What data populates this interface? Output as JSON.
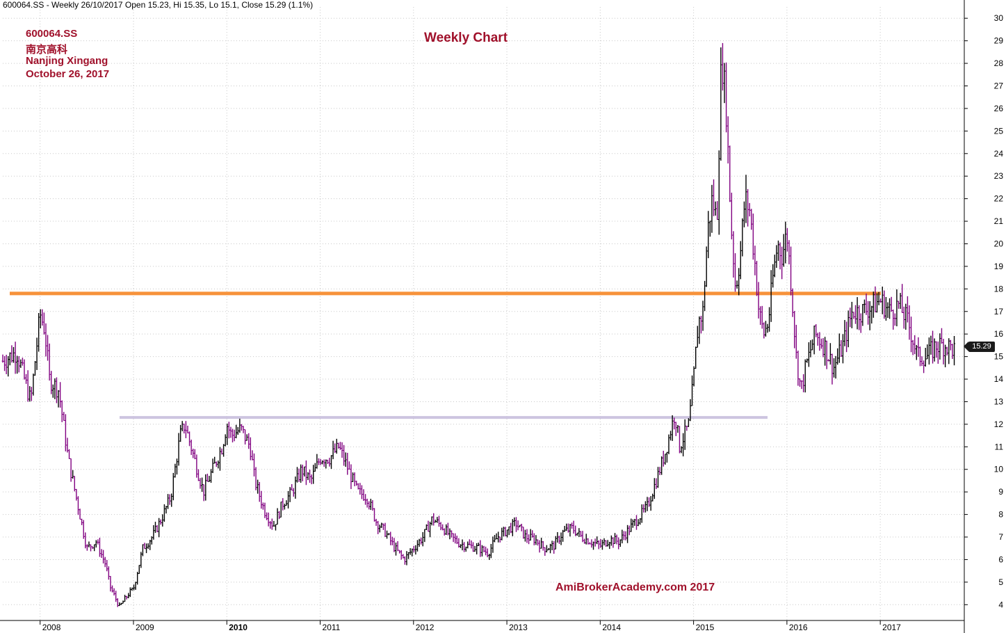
{
  "header": {
    "text": "600064.SS - Weekly 26/10/2017 Open 15.23, Hi 15.35, Lo 15.1, Close 15.29 (1.1%)"
  },
  "info": {
    "ticker": "600064.SS",
    "chinese_name": "南京高科",
    "company": "Nanjing Xingang",
    "date": "October 26, 2017"
  },
  "title": "Weekly Chart",
  "watermark": "AmiBrokerAcademy.com 2017",
  "colors": {
    "price_up": "#000000",
    "price_down": "#800080",
    "resistance": "#f7923a",
    "support": "#cdc4e0",
    "text_accent": "#a0112b",
    "grid": "#c8c8c8"
  },
  "chart_data": {
    "type": "line",
    "series": [
      {
        "name": "",
        "x": [
          2007.6,
          2007.75,
          2007.9,
          2008.0,
          2008.05,
          2008.1,
          2008.2,
          2008.3,
          2008.4,
          2008.5,
          2008.6,
          2008.7,
          2008.75,
          2008.85,
          2008.95,
          2009.0,
          2009.1,
          2009.2,
          2009.3,
          2009.4,
          2009.5,
          2009.55,
          2009.65,
          2009.75,
          2009.85,
          2009.95,
          2010.0,
          2010.05,
          2010.15,
          2010.25,
          2010.3,
          2010.4,
          2010.5,
          2010.6,
          2010.7,
          2010.8,
          2010.9,
          2011.0,
          2011.1,
          2011.2,
          2011.3,
          2011.4,
          2011.5,
          2011.6,
          2011.7,
          2011.8,
          2011.9,
          2012.0,
          2012.1,
          2012.2,
          2012.3,
          2012.4,
          2012.5,
          2012.6,
          2012.7,
          2012.8,
          2012.9,
          2013.0,
          2013.1,
          2013.2,
          2013.3,
          2013.4,
          2013.5,
          2013.6,
          2013.7,
          2013.8,
          2013.9,
          2014.0,
          2014.1,
          2014.2,
          2014.3,
          2014.4,
          2014.5,
          2014.6,
          2014.7,
          2014.8,
          2014.85,
          2014.9,
          2014.95,
          2015.0,
          2015.05,
          2015.1,
          2015.15,
          2015.2,
          2015.25,
          2015.3,
          2015.35,
          2015.4,
          2015.45,
          2015.5,
          2015.55,
          2015.6,
          2015.65,
          2015.7,
          2015.75,
          2015.8,
          2015.85,
          2015.9,
          2015.95,
          2016.0,
          2016.05,
          2016.1,
          2016.15,
          2016.2,
          2016.3,
          2016.4,
          2016.5,
          2016.6,
          2016.7,
          2016.8,
          2016.9,
          2017.0,
          2017.1,
          2017.2,
          2017.3,
          2017.4,
          2017.5,
          2017.6,
          2017.7,
          2017.8
        ],
        "values": [
          14.8,
          15.2,
          13.0,
          16.9,
          16.2,
          14.0,
          13.5,
          10.5,
          8.5,
          6.5,
          6.8,
          5.8,
          4.8,
          3.9,
          4.5,
          4.7,
          6.5,
          7.0,
          7.8,
          8.8,
          11.5,
          12.0,
          10.5,
          9.0,
          10.0,
          11.0,
          12.0,
          11.5,
          11.8,
          11.0,
          9.5,
          8.2,
          7.5,
          8.5,
          9.0,
          10.0,
          9.5,
          10.5,
          10.5,
          11.0,
          10.0,
          9.0,
          8.8,
          7.7,
          7.2,
          6.5,
          6.0,
          6.5,
          7.0,
          7.8,
          7.5,
          7.0,
          6.7,
          6.6,
          6.5,
          6.3,
          7.0,
          7.3,
          7.6,
          7.0,
          6.9,
          6.5,
          6.6,
          7.2,
          7.4,
          7.0,
          6.8,
          6.6,
          6.9,
          6.8,
          7.3,
          7.8,
          8.3,
          9.5,
          10.8,
          12.5,
          11.0,
          11.5,
          12.0,
          14.0,
          16.5,
          17.0,
          20.5,
          22.0,
          21.0,
          28.5,
          26.0,
          21.0,
          18.0,
          19.5,
          22.0,
          21.5,
          19.5,
          17.0,
          16.0,
          16.5,
          18.5,
          20.0,
          19.5,
          20.5,
          18.0,
          15.0,
          13.5,
          14.5,
          16.0,
          15.5,
          14.5,
          15.5,
          17.0,
          17.0,
          17.2,
          17.5,
          17.0,
          17.3,
          16.5,
          15.0,
          15.0,
          15.5,
          15.5,
          15.29
        ]
      }
    ],
    "xlabel": "",
    "ylabel": "",
    "x_ticks": [
      "2008",
      "2009",
      "2010",
      "2011",
      "2012",
      "2013",
      "2014",
      "2015",
      "2016",
      "2017"
    ],
    "y_ticks": [
      4,
      5,
      6,
      7,
      8,
      9,
      10,
      11,
      12,
      13,
      14,
      15,
      16,
      17,
      18,
      19,
      20,
      21,
      22,
      23,
      24,
      25,
      26,
      27,
      28,
      29,
      30
    ],
    "ylim": [
      3.3,
      30.5
    ],
    "xlim": [
      2007.6,
      2017.9
    ],
    "last_price_label": "15.29",
    "grid": true,
    "resistance_level": 17.8,
    "support_level": 12.3
  }
}
